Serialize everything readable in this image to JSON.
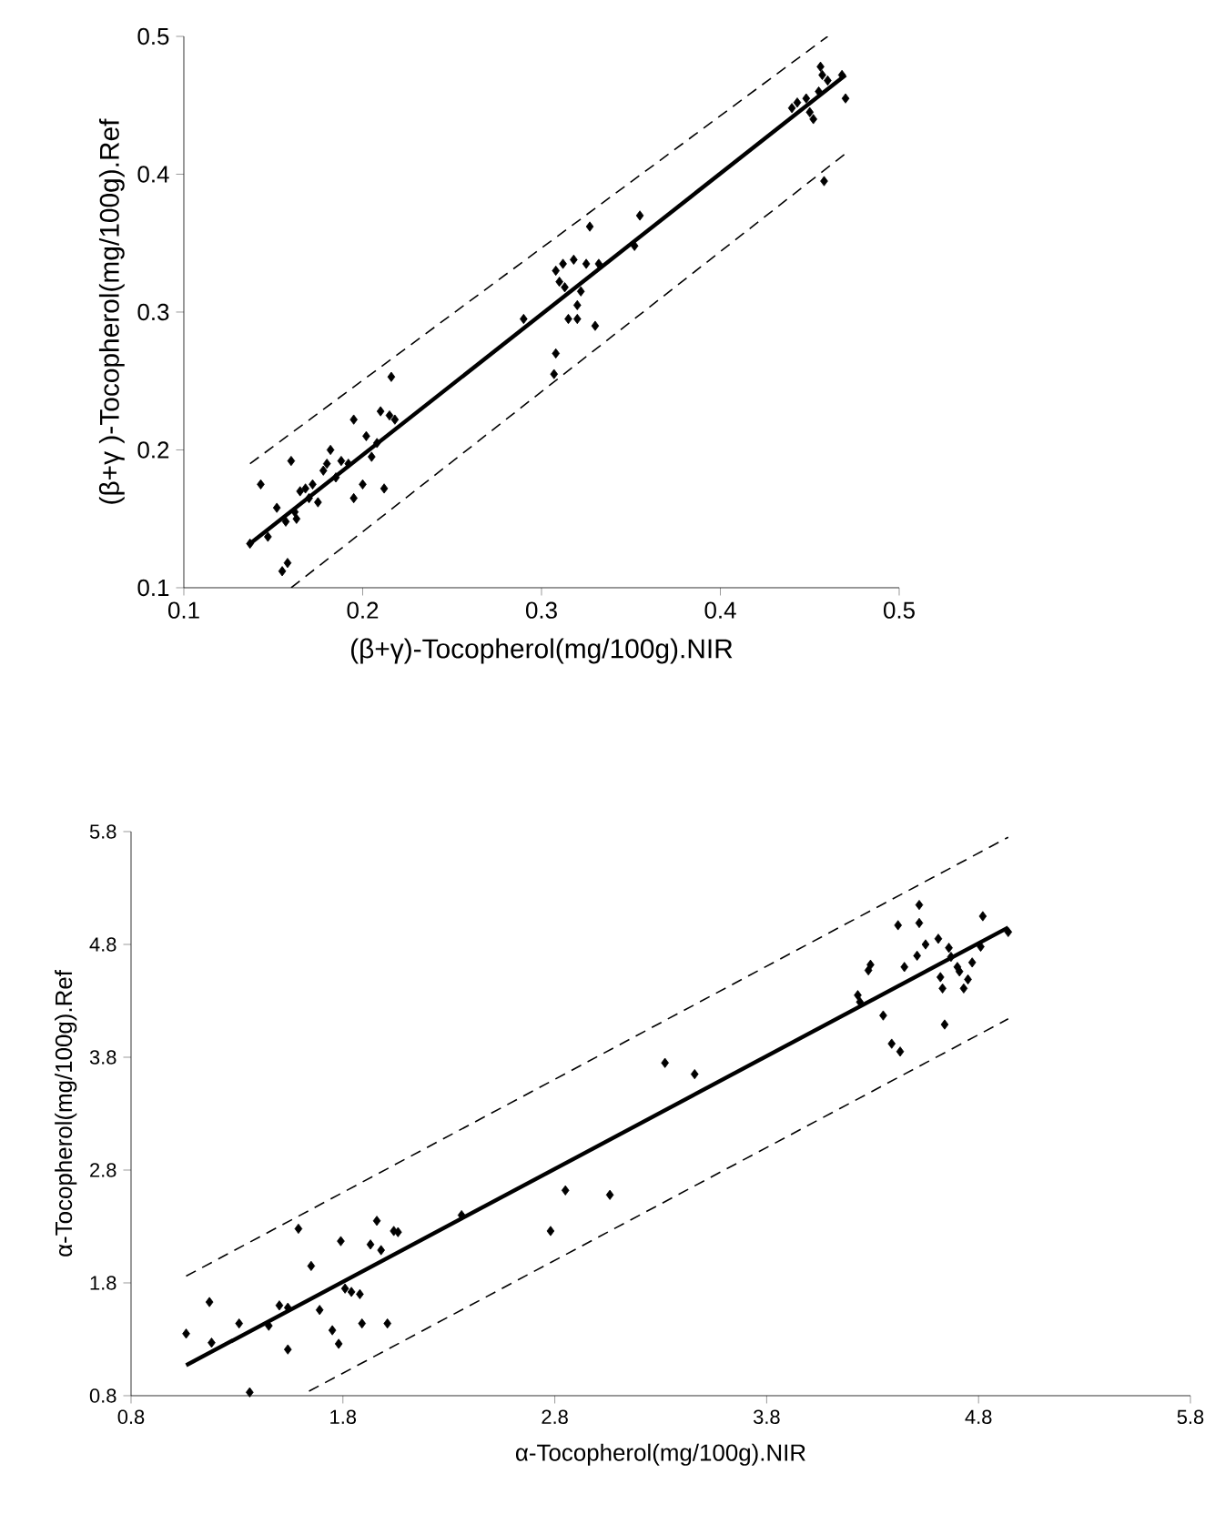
{
  "chart_data": [
    {
      "type": "scatter",
      "xlabel": "(β+γ)-Tocopherol(mg/100g).NIR",
      "ylabel": "(β+γ )-Tocopherol(mg/100g).Ref",
      "xlim": [
        0.1,
        0.5
      ],
      "ylim": [
        0.1,
        0.5
      ],
      "xticks": [
        0.1,
        0.2,
        0.3,
        0.4,
        0.5
      ],
      "yticks": [
        0.1,
        0.2,
        0.3,
        0.4,
        0.5
      ],
      "grid": false,
      "series": [
        {
          "marker": "diamond",
          "color": "#000000",
          "x": [
            0.137,
            0.143,
            0.147,
            0.152,
            0.155,
            0.158,
            0.157,
            0.16,
            0.162,
            0.163,
            0.165,
            0.168,
            0.17,
            0.172,
            0.175,
            0.178,
            0.18,
            0.182,
            0.185,
            0.188,
            0.192,
            0.195,
            0.195,
            0.2,
            0.202,
            0.205,
            0.208,
            0.21,
            0.212,
            0.215,
            0.216,
            0.218,
            0.29,
            0.307,
            0.308,
            0.308,
            0.31,
            0.312,
            0.313,
            0.315,
            0.318,
            0.32,
            0.32,
            0.322,
            0.325,
            0.327,
            0.33,
            0.332,
            0.352,
            0.355,
            0.44,
            0.443,
            0.448,
            0.45,
            0.452,
            0.455,
            0.456,
            0.457,
            0.458,
            0.46,
            0.468,
            0.47
          ],
          "values": [
            0.132,
            0.175,
            0.137,
            0.158,
            0.112,
            0.118,
            0.148,
            0.192,
            0.155,
            0.15,
            0.17,
            0.172,
            0.165,
            0.175,
            0.162,
            0.185,
            0.19,
            0.2,
            0.18,
            0.192,
            0.19,
            0.222,
            0.165,
            0.175,
            0.21,
            0.195,
            0.205,
            0.228,
            0.172,
            0.225,
            0.253,
            0.222,
            0.295,
            0.255,
            0.27,
            0.33,
            0.322,
            0.335,
            0.318,
            0.295,
            0.338,
            0.305,
            0.295,
            0.315,
            0.335,
            0.362,
            0.29,
            0.335,
            0.348,
            0.37,
            0.448,
            0.452,
            0.455,
            0.445,
            0.44,
            0.46,
            0.478,
            0.472,
            0.395,
            0.468,
            0.472,
            0.455
          ]
        },
        {
          "type": "line",
          "line_style": "solid",
          "color": "#000000",
          "x": [
            0.137,
            0.47
          ],
          "values": [
            0.132,
            0.472
          ]
        },
        {
          "type": "line",
          "line_style": "dashed",
          "color": "#000000",
          "x": [
            0.137,
            0.46
          ],
          "values": [
            0.19,
            0.5
          ]
        },
        {
          "type": "line",
          "line_style": "dashed",
          "color": "#000000",
          "x": [
            0.16,
            0.47
          ],
          "values": [
            0.1,
            0.415
          ]
        }
      ]
    },
    {
      "type": "scatter",
      "xlabel": "α-Tocopherol(mg/100g).NIR",
      "ylabel": "α-Tocopherol(mg/100g).Ref",
      "xlim": [
        0.8,
        5.8
      ],
      "ylim": [
        0.8,
        5.8
      ],
      "xticks": [
        0.8,
        1.8,
        2.8,
        3.8,
        4.8,
        5.8
      ],
      "yticks": [
        0.8,
        1.8,
        2.8,
        3.8,
        4.8,
        5.8
      ],
      "grid": false,
      "series": [
        {
          "marker": "diamond",
          "color": "#000000",
          "x": [
            1.06,
            1.17,
            1.18,
            1.31,
            1.36,
            1.45,
            1.5,
            1.54,
            1.54,
            1.59,
            1.65,
            1.69,
            1.75,
            1.78,
            1.79,
            1.81,
            1.84,
            1.88,
            1.89,
            1.93,
            1.96,
            1.98,
            2.01,
            2.04,
            2.06,
            2.36,
            2.78,
            2.85,
            3.06,
            3.32,
            3.46,
            4.23,
            4.24,
            4.28,
            4.29,
            4.35,
            4.39,
            4.43,
            4.42,
            4.45,
            4.51,
            4.52,
            4.52,
            4.55,
            4.61,
            4.62,
            4.63,
            4.64,
            4.66,
            4.67,
            4.7,
            4.71,
            4.73,
            4.75,
            4.77,
            4.81,
            4.82,
            4.94
          ],
          "values": [
            1.35,
            1.63,
            1.27,
            1.44,
            0.83,
            1.42,
            1.6,
            1.58,
            1.21,
            2.28,
            1.95,
            1.56,
            1.38,
            1.26,
            2.17,
            1.75,
            1.72,
            1.7,
            1.44,
            2.14,
            2.35,
            2.09,
            1.44,
            2.26,
            2.25,
            2.4,
            2.26,
            2.62,
            2.58,
            3.75,
            3.65,
            4.35,
            4.29,
            4.57,
            4.62,
            4.17,
            3.92,
            3.85,
            4.97,
            4.6,
            4.7,
            5.15,
            4.99,
            4.8,
            4.85,
            4.51,
            4.41,
            4.09,
            4.77,
            4.69,
            4.6,
            4.56,
            4.41,
            4.49,
            4.64,
            4.78,
            5.05,
            4.91
          ]
        },
        {
          "type": "line",
          "line_style": "solid",
          "color": "#000000",
          "x": [
            1.06,
            4.94
          ],
          "values": [
            1.07,
            4.95
          ]
        },
        {
          "type": "line",
          "line_style": "dashed",
          "color": "#000000",
          "x": [
            1.06,
            4.94
          ],
          "values": [
            1.86,
            5.75
          ]
        },
        {
          "type": "line",
          "line_style": "dashed",
          "color": "#000000",
          "x": [
            1.64,
            4.94
          ],
          "values": [
            0.84,
            4.14
          ]
        }
      ]
    }
  ]
}
